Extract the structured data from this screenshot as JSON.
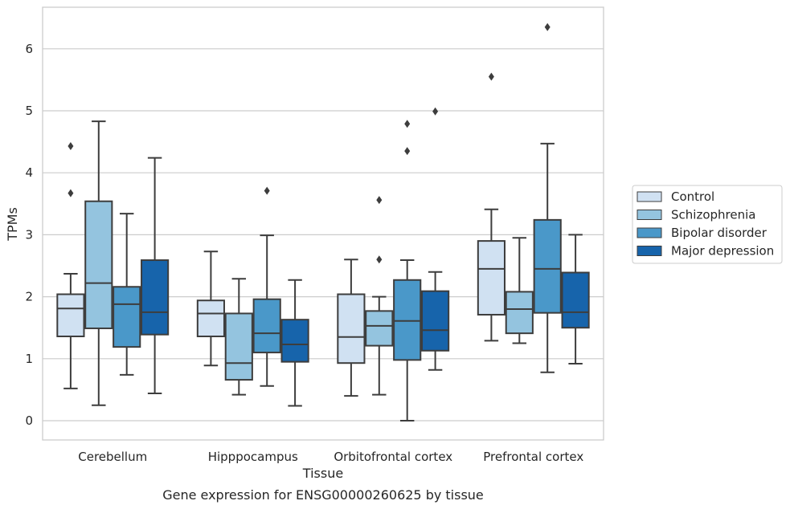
{
  "chart_data": {
    "type": "boxplot",
    "xlabel": "Tissue",
    "ylabel": "TPMs",
    "caption": "Gene expression for ENSG00000260625 by tissue",
    "ylim": [
      -0.3,
      6.7
    ],
    "yticks": [
      0,
      1,
      2,
      3,
      4,
      5,
      6
    ],
    "grid": "horizontal",
    "legend_position": "right",
    "categories": [
      "Cerebellum",
      "Hipppocampus",
      "Orbitofrontal cortex",
      "Prefrontal cortex"
    ],
    "series": [
      {
        "name": "Control",
        "color": "#d0e1f2",
        "boxes": [
          {
            "whislo": 0.52,
            "q1": 1.36,
            "med": 1.81,
            "q3": 2.04,
            "whishi": 2.37,
            "fliers": [
              4.43,
              3.67
            ]
          },
          {
            "whislo": 0.89,
            "q1": 1.36,
            "med": 1.73,
            "q3": 1.94,
            "whishi": 2.73,
            "fliers": []
          },
          {
            "whislo": 0.4,
            "q1": 0.93,
            "med": 1.35,
            "q3": 2.04,
            "whishi": 2.6,
            "fliers": []
          },
          {
            "whislo": 1.29,
            "q1": 1.71,
            "med": 2.45,
            "q3": 2.9,
            "whishi": 3.41,
            "fliers": [
              5.55
            ]
          }
        ]
      },
      {
        "name": "Schizophrenia",
        "color": "#94c4df",
        "boxes": [
          {
            "whislo": 0.25,
            "q1": 1.49,
            "med": 2.22,
            "q3": 3.54,
            "whishi": 4.83,
            "fliers": []
          },
          {
            "whislo": 0.42,
            "q1": 0.66,
            "med": 0.93,
            "q3": 1.73,
            "whishi": 2.29,
            "fliers": []
          },
          {
            "whislo": 0.42,
            "q1": 1.21,
            "med": 1.53,
            "q3": 1.77,
            "whishi": 2.0,
            "fliers": [
              3.56,
              2.6
            ]
          },
          {
            "whislo": 1.25,
            "q1": 1.41,
            "med": 1.8,
            "q3": 2.08,
            "whishi": 2.95,
            "fliers": []
          }
        ]
      },
      {
        "name": "Bipolar disorder",
        "color": "#4a98c9",
        "boxes": [
          {
            "whislo": 0.74,
            "q1": 1.19,
            "med": 1.88,
            "q3": 2.16,
            "whishi": 3.34,
            "fliers": []
          },
          {
            "whislo": 0.56,
            "q1": 1.1,
            "med": 1.41,
            "q3": 1.96,
            "whishi": 2.99,
            "fliers": [
              3.71
            ]
          },
          {
            "whislo": 0.0,
            "q1": 0.98,
            "med": 1.61,
            "q3": 2.27,
            "whishi": 2.59,
            "fliers": [
              4.79,
              4.35
            ]
          },
          {
            "whislo": 0.78,
            "q1": 1.74,
            "med": 2.45,
            "q3": 3.24,
            "whishi": 4.47,
            "fliers": [
              6.35
            ]
          }
        ]
      },
      {
        "name": "Major depression",
        "color": "#1764ab",
        "boxes": [
          {
            "whislo": 0.44,
            "q1": 1.39,
            "med": 1.75,
            "q3": 2.59,
            "whishi": 4.24,
            "fliers": []
          },
          {
            "whislo": 0.24,
            "q1": 0.95,
            "med": 1.23,
            "q3": 1.63,
            "whishi": 2.27,
            "fliers": []
          },
          {
            "whislo": 0.82,
            "q1": 1.13,
            "med": 1.46,
            "q3": 2.09,
            "whishi": 2.4,
            "fliers": [
              4.99
            ]
          },
          {
            "whislo": 0.92,
            "q1": 1.5,
            "med": 1.75,
            "q3": 2.39,
            "whishi": 3.0,
            "fliers": []
          }
        ]
      }
    ]
  }
}
